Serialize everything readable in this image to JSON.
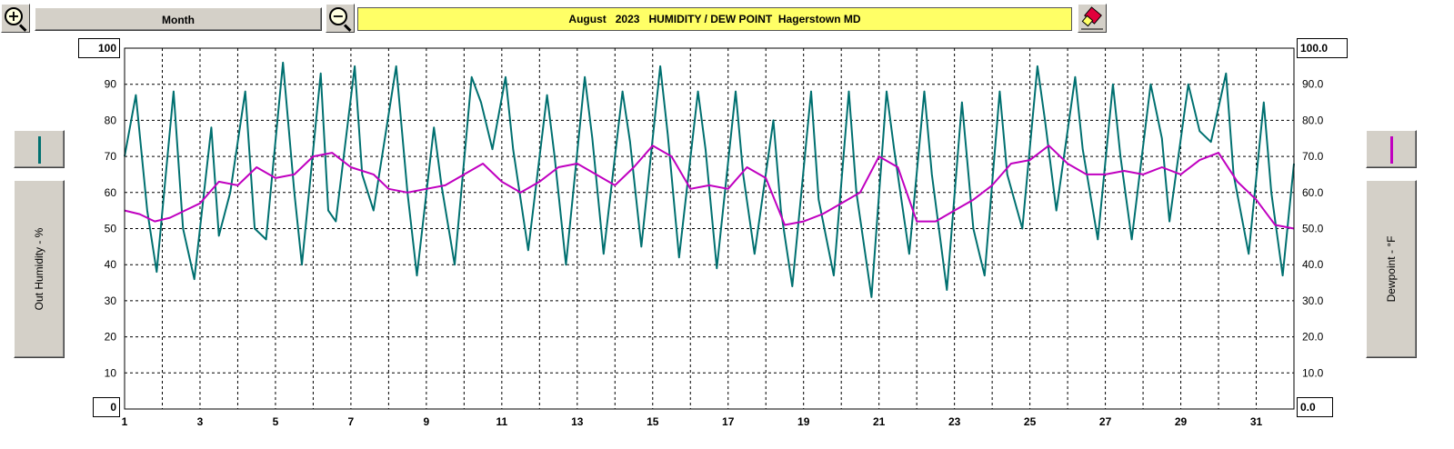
{
  "toolbar": {
    "zoom_in_icon": "zoom-in-icon",
    "zoom_out_icon": "zoom-out-icon",
    "period_label": "Month",
    "title": "August   2023   HUMIDITY / DEW POINT  Hagerstown MD",
    "eraser_icon": "eraser-icon"
  },
  "left_axis": {
    "label": "Out Humidity - %",
    "max_box": "100",
    "min_box": "0",
    "color": "#007070"
  },
  "right_axis": {
    "label": "Dewpoint - °F",
    "max_box": "100.0",
    "min_box": "0.0",
    "color": "#c000c0"
  },
  "colors": {
    "title_bg": "#ffff66",
    "humidity": "#007070",
    "dewpoint": "#c000c0",
    "grid": "#000000"
  },
  "chart_data": {
    "type": "line",
    "title": "August   2023   HUMIDITY / DEW POINT  Hagerstown MD",
    "xlabel": "",
    "ylabel": "Out Humidity - %",
    "y2label": "Dewpoint - °F",
    "xlim": [
      1,
      32
    ],
    "ylim": [
      0,
      100
    ],
    "y2lim": [
      0,
      100
    ],
    "grid": true,
    "x_ticks": [
      1,
      3,
      5,
      7,
      9,
      11,
      13,
      15,
      17,
      19,
      21,
      23,
      25,
      27,
      29,
      31
    ],
    "y_ticks": [
      "10",
      "20",
      "30",
      "40",
      "50",
      "60",
      "70",
      "80",
      "90"
    ],
    "y2_ticks": [
      "10.0",
      "20.0",
      "30.0",
      "40.0",
      "50.0",
      "60.0",
      "70.0",
      "80.0",
      "90.0"
    ],
    "series": [
      {
        "name": "Out Humidity - %",
        "axis": "left",
        "color": "#007070",
        "x": [
          1.0,
          1.3,
          1.6,
          1.85,
          2.3,
          2.55,
          2.85,
          3.3,
          3.5,
          3.8,
          4.2,
          4.45,
          4.75,
          5.2,
          5.5,
          5.7,
          6.2,
          6.4,
          6.6,
          7.1,
          7.3,
          7.6,
          8.2,
          8.5,
          8.75,
          9.2,
          9.4,
          9.75,
          10.2,
          10.45,
          10.75,
          11.1,
          11.3,
          11.7,
          12.2,
          12.4,
          12.7,
          13.2,
          13.4,
          13.7,
          14.2,
          14.4,
          14.7,
          15.2,
          15.4,
          15.7,
          16.2,
          16.4,
          16.7,
          17.2,
          17.4,
          17.7,
          18.2,
          18.4,
          18.7,
          19.2,
          19.4,
          19.8,
          20.2,
          20.4,
          20.8,
          21.2,
          21.4,
          21.8,
          22.2,
          22.4,
          22.8,
          23.2,
          23.5,
          23.8,
          24.2,
          24.4,
          24.8,
          25.2,
          25.4,
          25.7,
          26.2,
          26.4,
          26.8,
          27.2,
          27.4,
          27.7,
          28.2,
          28.5,
          28.7,
          29.2,
          29.5,
          29.8,
          30.2,
          30.4,
          30.8,
          31.2,
          31.4,
          31.7,
          32.0
        ],
        "values": [
          70,
          87,
          55,
          38,
          88,
          50,
          36,
          78,
          48,
          60,
          88,
          50,
          47,
          96,
          60,
          40,
          93,
          55,
          52,
          95,
          65,
          55,
          95,
          60,
          37,
          78,
          62,
          40,
          92,
          85,
          72,
          92,
          72,
          44,
          87,
          70,
          40,
          92,
          75,
          43,
          88,
          74,
          45,
          95,
          76,
          42,
          88,
          72,
          39,
          88,
          65,
          43,
          80,
          55,
          34,
          88,
          58,
          37,
          88,
          60,
          31,
          88,
          72,
          43,
          88,
          65,
          33,
          85,
          50,
          37,
          88,
          65,
          50,
          95,
          80,
          55,
          92,
          72,
          47,
          90,
          70,
          47,
          90,
          75,
          52,
          90,
          77,
          74,
          93,
          65,
          43,
          85,
          60,
          37,
          68
        ]
      },
      {
        "name": "Dewpoint - °F",
        "axis": "right",
        "color": "#c000c0",
        "x": [
          1.0,
          1.4,
          1.8,
          2.2,
          2.6,
          3.0,
          3.5,
          4.0,
          4.5,
          5.0,
          5.5,
          6.0,
          6.5,
          7.0,
          7.6,
          8.0,
          8.5,
          9.0,
          9.5,
          10.0,
          10.5,
          11.0,
          11.5,
          12.0,
          12.5,
          13.0,
          13.5,
          14.0,
          14.5,
          15.0,
          15.5,
          16.0,
          16.5,
          17.0,
          17.5,
          18.0,
          18.5,
          19.0,
          19.5,
          20.0,
          20.5,
          21.0,
          21.5,
          22.0,
          22.5,
          23.0,
          23.5,
          24.0,
          24.5,
          25.0,
          25.5,
          26.0,
          26.5,
          27.0,
          27.5,
          28.0,
          28.5,
          29.0,
          29.5,
          30.0,
          30.5,
          31.0,
          31.5,
          32.0
        ],
        "values": [
          55,
          54,
          52,
          53,
          55,
          57,
          63,
          62,
          67,
          64,
          65,
          70,
          71,
          67,
          65,
          61,
          60,
          61,
          62,
          65,
          68,
          63,
          60,
          63,
          67,
          68,
          65,
          62,
          67,
          73,
          70,
          61,
          62,
          61,
          67,
          64,
          51,
          52,
          54,
          57,
          60,
          70,
          67,
          52,
          52,
          55,
          58,
          62,
          68,
          69,
          73,
          68,
          65,
          65,
          66,
          65,
          67,
          65,
          69,
          71,
          63,
          58,
          51,
          50
        ]
      }
    ]
  }
}
